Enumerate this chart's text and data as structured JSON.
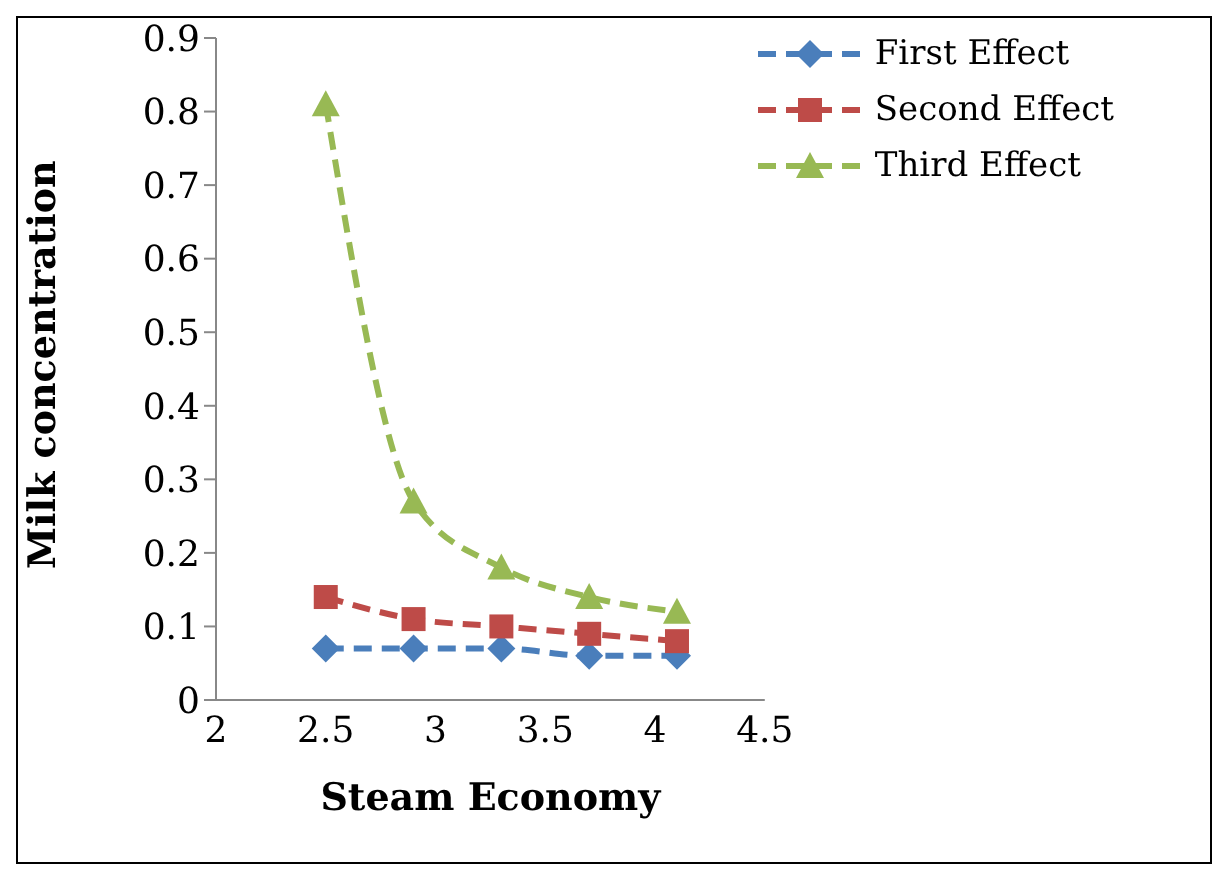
{
  "chart_data": {
    "type": "line",
    "xlabel": "Steam Economy",
    "ylabel": "Milk  concentration",
    "x": [
      2.5,
      2.9,
      3.3,
      3.7,
      4.1
    ],
    "xlim": [
      2,
      4.5
    ],
    "xticks": [
      2,
      2.5,
      3,
      3.5,
      4,
      4.5
    ],
    "ylim": [
      0,
      0.9
    ],
    "yticks": [
      0,
      0.1,
      0.2,
      0.3,
      0.4,
      0.5,
      0.6,
      0.7,
      0.8,
      0.9
    ],
    "grid": false,
    "legend": "top right",
    "line_style": "dashed",
    "series": [
      {
        "name": "First Effect",
        "color": "#4a7ebb",
        "marker": "diamond",
        "values": [
          0.07,
          0.07,
          0.07,
          0.06,
          0.06
        ]
      },
      {
        "name": "Second Effect",
        "color": "#be4b48",
        "marker": "square",
        "values": [
          0.14,
          0.11,
          0.1,
          0.09,
          0.08
        ]
      },
      {
        "name": "Third Effect",
        "color": "#98b954",
        "marker": "triangle",
        "values": [
          0.81,
          0.27,
          0.18,
          0.14,
          0.12
        ]
      }
    ]
  }
}
